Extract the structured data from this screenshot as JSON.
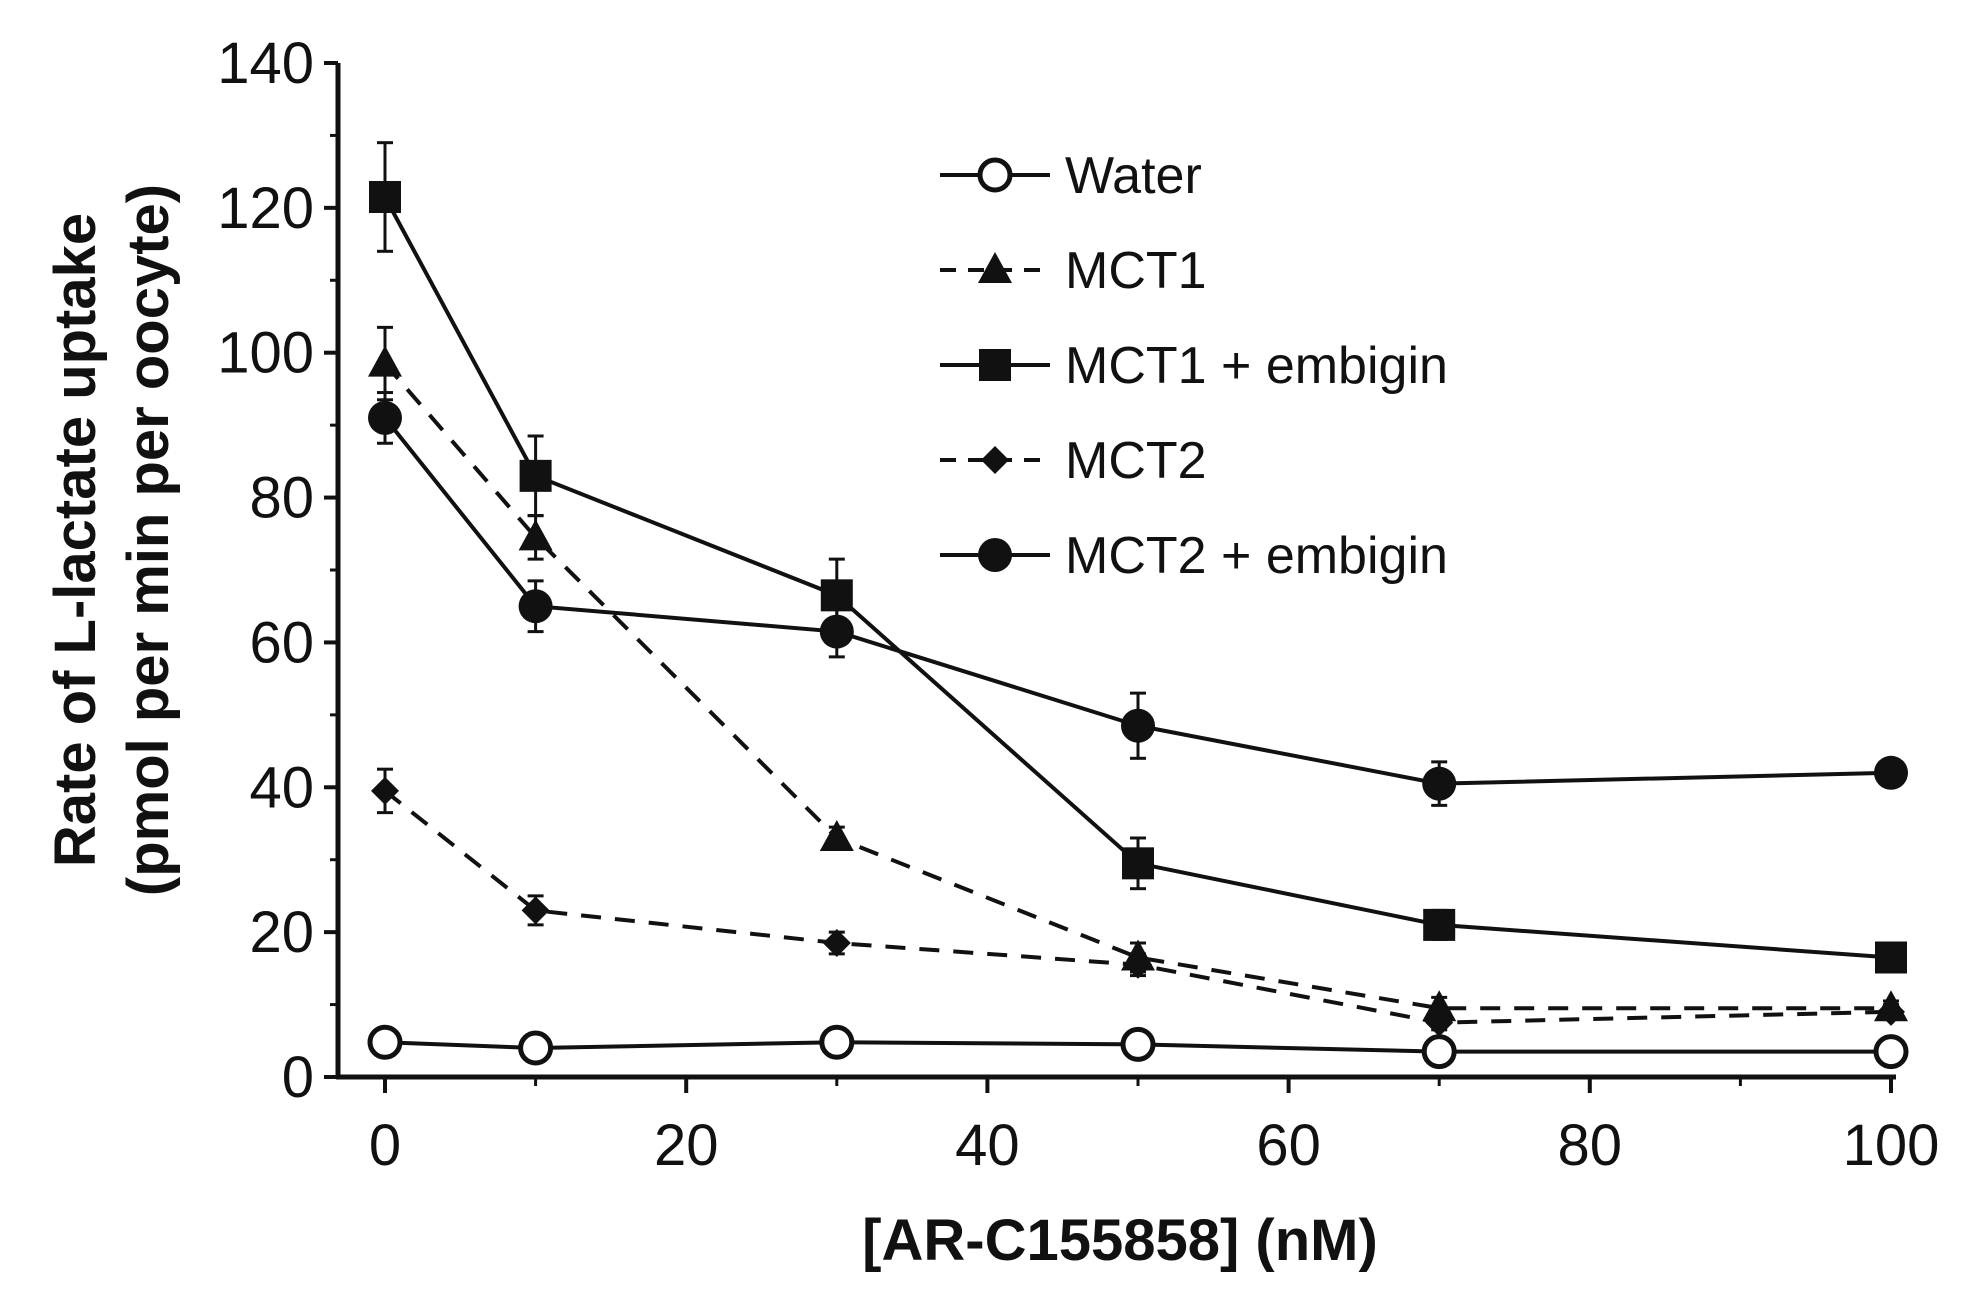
{
  "chart_data": {
    "type": "line",
    "title": "",
    "xlabel": "[AR-C155858] (nM)",
    "ylabel": [
      "Rate of L-lactate uptake",
      "(pmol per min per oocyte)"
    ],
    "xlim": [
      0,
      100
    ],
    "ylim": [
      0,
      140
    ],
    "xticks": [
      0,
      20,
      40,
      60,
      80,
      100
    ],
    "yticks": [
      0,
      20,
      40,
      60,
      80,
      100,
      120,
      140
    ],
    "grid": false,
    "legend_position": "top-right",
    "x": [
      0,
      10,
      30,
      50,
      70,
      100
    ],
    "series": [
      {
        "name": "Water",
        "marker": "circle-open",
        "linestyle": "solid",
        "values": [
          4.8,
          4.0,
          4.8,
          4.5,
          3.5,
          3.5
        ],
        "errors": [
          0.5,
          0.5,
          0.5,
          0.5,
          0.5,
          0.5
        ]
      },
      {
        "name": "MCT1",
        "marker": "triangle",
        "linestyle": "dashed",
        "values": [
          98.5,
          74.5,
          33.0,
          16.5,
          9.5,
          9.5
        ],
        "errors": [
          5.0,
          3.0,
          1.5,
          2.0,
          1.5,
          1.0
        ]
      },
      {
        "name": "MCT1 + embigin",
        "marker": "square",
        "linestyle": "solid",
        "values": [
          121.5,
          83.0,
          66.5,
          29.5,
          21.0,
          16.5
        ],
        "errors": [
          7.5,
          5.5,
          5.0,
          3.5,
          2.0,
          1.0
        ]
      },
      {
        "name": "MCT2",
        "marker": "diamond",
        "linestyle": "dashed",
        "values": [
          39.5,
          23.0,
          18.5,
          15.5,
          7.5,
          9.0
        ],
        "errors": [
          3.0,
          2.0,
          1.5,
          1.5,
          1.0,
          1.0
        ]
      },
      {
        "name": "MCT2 + embigin",
        "marker": "circle",
        "linestyle": "solid",
        "values": [
          91.0,
          65.0,
          61.5,
          48.5,
          40.5,
          42.0
        ],
        "errors": [
          3.5,
          3.5,
          3.5,
          4.5,
          3.0,
          1.0
        ]
      }
    ]
  }
}
